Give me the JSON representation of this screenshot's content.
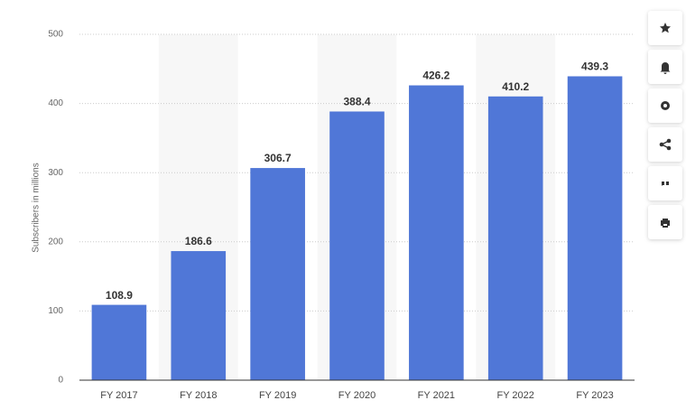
{
  "chart_data": {
    "type": "bar",
    "y_axis_label": "Subscribers in millions",
    "categories": [
      "FY 2017",
      "FY 2018",
      "FY 2019",
      "FY 2020",
      "FY 2021",
      "FY 2022",
      "FY 2023"
    ],
    "values": [
      108.9,
      186.6,
      306.7,
      388.4,
      426.2,
      410.2,
      439.3
    ],
    "color": "#5077d7",
    "ylim": [
      0,
      500
    ],
    "yticks": [
      0,
      100,
      200,
      300,
      400,
      500
    ],
    "grid": true
  }
}
